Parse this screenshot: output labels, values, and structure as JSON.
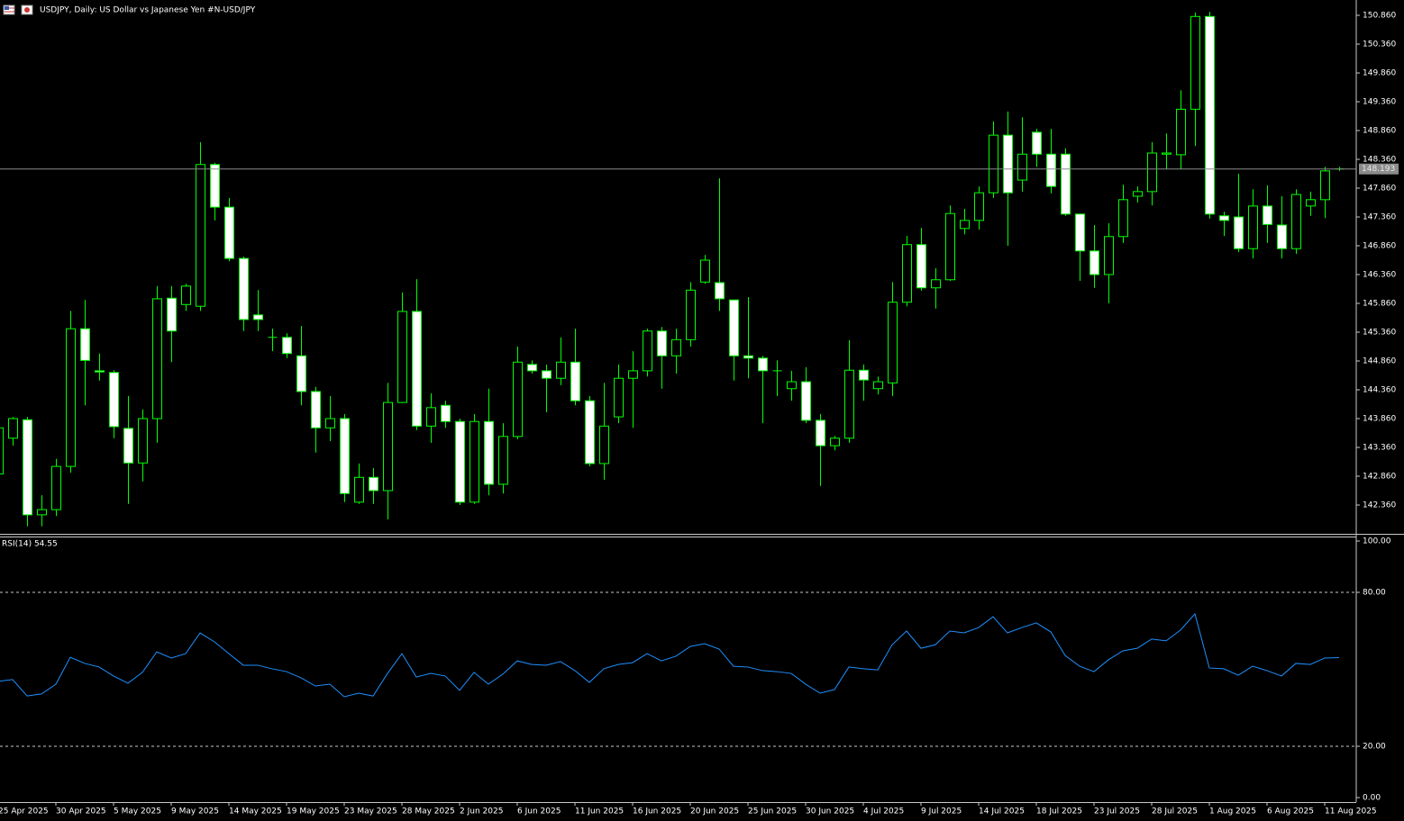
{
  "chart_data": [
    {
      "type": "candlestick",
      "title": "USDJPY, Daily:  US Dollar vs  Japanese Yen #N-USD/JPY",
      "categories": [
        "25 Apr 2025",
        null,
        null,
        null,
        "30 Apr 2025",
        null,
        null,
        null,
        "5 May 2025",
        null,
        null,
        null,
        "9 May 2025",
        null,
        null,
        null,
        "14 May 2025",
        null,
        null,
        null,
        "19 May 2025",
        null,
        null,
        null,
        "23 May 2025",
        null,
        null,
        null,
        "28 May 2025",
        null,
        null,
        null,
        "2 Jun 2025",
        null,
        null,
        null,
        "6 Jun 2025",
        null,
        null,
        null,
        "11 Jun 2025",
        null,
        null,
        null,
        "16 Jun 2025",
        null,
        null,
        null,
        "20 Jun 2025",
        null,
        null,
        null,
        "25 Jun 2025",
        null,
        null,
        null,
        "30 Jun 2025",
        null,
        null,
        null,
        "4 Jul 2025",
        null,
        null,
        null,
        "9 Jul 2025",
        null,
        null,
        null,
        "14 Jul 2025",
        null,
        null,
        null,
        "18 Jul 2025",
        null,
        null,
        null,
        "23 Jul 2025",
        null,
        null,
        null,
        "28 Jul 2025",
        null,
        null,
        null,
        "1 Aug 2025",
        null,
        null,
        null,
        "6 Aug 2025",
        null,
        null,
        null,
        "11 Aug 2025",
        null
      ],
      "open": [
        142.9,
        143.52,
        143.84,
        142.19,
        142.28,
        143.03,
        145.42,
        144.69,
        144.66,
        143.69,
        143.09,
        143.86,
        145.95,
        145.84,
        145.81,
        148.27,
        147.53,
        146.64,
        145.66,
        145.27,
        145.27,
        144.95,
        144.33,
        143.7,
        143.86,
        142.41,
        142.84,
        142.61,
        144.14,
        145.72,
        143.73,
        144.09,
        143.81,
        142.41,
        143.81,
        142.72,
        143.55,
        144.8,
        144.69,
        144.56,
        144.84,
        144.17,
        143.08,
        143.89,
        144.56,
        144.69,
        145.38,
        144.95,
        145.23,
        146.23,
        146.22,
        145.92,
        144.95,
        144.91,
        144.69,
        144.38,
        144.5,
        143.83,
        143.39,
        143.52,
        144.7,
        144.38,
        144.48,
        145.88,
        146.88,
        146.13,
        146.27,
        147.16,
        147.3,
        147.78,
        148.78,
        148.0,
        148.83,
        148.45,
        148.45,
        147.41,
        146.77,
        146.36,
        147.02,
        147.72,
        147.8,
        148.45,
        148.44,
        149.23,
        150.84,
        147.38,
        147.36,
        146.81,
        147.55,
        147.22,
        146.81,
        147.55,
        147.66,
        148.18
      ],
      "high": [
        143.9,
        143.89,
        143.89,
        142.53,
        143.16,
        145.73,
        145.92,
        144.99,
        144.7,
        144.25,
        144.02,
        146.16,
        146.16,
        146.2,
        148.66,
        148.3,
        147.69,
        146.67,
        146.09,
        145.42,
        145.34,
        145.47,
        144.41,
        144.25,
        143.94,
        143.08,
        143.0,
        144.48,
        146.05,
        146.28,
        144.3,
        144.17,
        143.86,
        143.94,
        144.38,
        143.78,
        145.11,
        144.87,
        144.8,
        145.27,
        145.42,
        144.25,
        144.48,
        144.8,
        145.03,
        145.42,
        145.45,
        145.42,
        146.23,
        146.7,
        148.03,
        145.92,
        145.97,
        144.95,
        144.87,
        144.69,
        144.75,
        143.94,
        143.56,
        145.22,
        144.8,
        144.59,
        146.23,
        147.03,
        147.17,
        146.47,
        147.56,
        147.5,
        147.89,
        149.02,
        149.19,
        149.09,
        148.89,
        148.89,
        148.55,
        147.42,
        147.22,
        147.25,
        147.92,
        147.89,
        148.66,
        148.81,
        149.56,
        150.91,
        150.92,
        147.45,
        148.11,
        147.84,
        147.91,
        147.72,
        147.84,
        147.8,
        148.23,
        148.23
      ],
      "low": [
        142.8,
        143.39,
        141.99,
        141.99,
        142.17,
        142.92,
        144.09,
        144.52,
        143.52,
        142.38,
        142.77,
        143.44,
        144.84,
        145.73,
        145.73,
        147.3,
        146.59,
        145.38,
        145.38,
        145.03,
        144.91,
        144.09,
        143.27,
        143.47,
        142.41,
        142.38,
        142.38,
        142.11,
        144.13,
        143.66,
        143.44,
        143.7,
        142.36,
        142.38,
        142.53,
        142.56,
        143.5,
        144.64,
        143.97,
        144.44,
        144.09,
        143.03,
        142.8,
        143.78,
        143.7,
        144.59,
        144.38,
        144.64,
        145.11,
        146.2,
        145.73,
        144.52,
        144.56,
        143.78,
        144.25,
        144.17,
        143.78,
        142.69,
        143.31,
        143.44,
        144.17,
        144.28,
        144.25,
        145.81,
        146.08,
        145.77,
        146.25,
        147.06,
        147.14,
        147.69,
        146.86,
        147.8,
        148.23,
        147.77,
        147.38,
        146.25,
        146.13,
        145.86,
        146.91,
        147.61,
        147.56,
        148.19,
        148.19,
        148.59,
        147.33,
        147.03,
        146.75,
        146.64,
        146.91,
        146.64,
        146.72,
        147.38,
        147.34,
        148.16
      ],
      "close": [
        143.7,
        143.86,
        142.19,
        142.28,
        143.03,
        145.42,
        144.87,
        144.67,
        143.72,
        143.09,
        143.86,
        145.94,
        145.38,
        146.16,
        148.27,
        147.53,
        146.64,
        145.58,
        145.58,
        145.27,
        144.99,
        144.33,
        143.7,
        143.86,
        142.56,
        142.84,
        142.61,
        144.14,
        145.72,
        143.73,
        144.05,
        143.81,
        142.41,
        143.81,
        142.72,
        143.55,
        144.84,
        144.69,
        144.56,
        144.84,
        144.17,
        143.08,
        143.73,
        144.56,
        144.69,
        145.38,
        144.95,
        145.23,
        146.09,
        146.61,
        145.94,
        144.95,
        144.91,
        144.69,
        144.69,
        144.5,
        143.83,
        143.39,
        143.52,
        144.7,
        144.53,
        144.5,
        145.88,
        146.88,
        146.13,
        146.27,
        147.42,
        147.3,
        147.78,
        148.78,
        147.78,
        148.45,
        148.45,
        147.89,
        147.41,
        146.77,
        146.36,
        147.02,
        147.66,
        147.8,
        148.47,
        148.47,
        149.23,
        150.84,
        147.41,
        147.3,
        146.81,
        147.55,
        147.23,
        146.81,
        147.75,
        147.66,
        148.16,
        148.193
      ],
      "up_color": "#000000",
      "down_color": "#ffffff",
      "wick_color": "#00ff00",
      "ylim": [
        141.86,
        151.126
      ],
      "yticks": [
        {
          "value": 150.86,
          "label": "150.860"
        },
        {
          "value": 150.36,
          "label": "150.360"
        },
        {
          "value": 149.86,
          "label": "149.860"
        },
        {
          "value": 149.36,
          "label": "149.360"
        },
        {
          "value": 148.86,
          "label": "148.860"
        },
        {
          "value": 148.36,
          "label": "148.360"
        },
        {
          "value": 147.86,
          "label": "147.860"
        },
        {
          "value": 147.36,
          "label": "147.360"
        },
        {
          "value": 146.86,
          "label": "146.860"
        },
        {
          "value": 146.36,
          "label": "146.360"
        },
        {
          "value": 145.86,
          "label": "145.860"
        },
        {
          "value": 145.36,
          "label": "145.360"
        },
        {
          "value": 144.86,
          "label": "144.860"
        },
        {
          "value": 144.36,
          "label": "144.360"
        },
        {
          "value": 143.86,
          "label": "143.860"
        },
        {
          "value": 143.36,
          "label": "143.360"
        },
        {
          "value": 142.86,
          "label": "142.860"
        },
        {
          "value": 142.36,
          "label": "142.360"
        }
      ],
      "last_price": 148.193
    },
    {
      "type": "line",
      "title": "RSI(14) 54.55",
      "values": [
        45.3,
        46.0,
        39.6,
        40.4,
        44.2,
        54.7,
        52.3,
        50.9,
        47.4,
        44.6,
        48.8,
        56.8,
        54.4,
        56.1,
        64.2,
        60.7,
        56.1,
        51.6,
        51.6,
        50.2,
        49.1,
        46.7,
        43.5,
        44.2,
        39.3,
        40.7,
        39.6,
        48.4,
        56.1,
        47.0,
        48.4,
        47.4,
        41.8,
        48.8,
        44.2,
        48.1,
        53.3,
        51.9,
        51.6,
        53.0,
        49.5,
        44.9,
        50.2,
        51.9,
        52.6,
        56.1,
        53.3,
        55.1,
        58.9,
        60.0,
        57.9,
        51.2,
        50.9,
        49.5,
        49.1,
        48.4,
        44.2,
        40.7,
        42.1,
        50.9,
        50.2,
        49.8,
        59.6,
        64.9,
        58.2,
        59.6,
        64.9,
        64.2,
        66.3,
        70.5,
        64.2,
        66.3,
        68.1,
        64.6,
        55.4,
        51.2,
        49.1,
        53.7,
        57.2,
        58.2,
        61.8,
        61.1,
        65.3,
        71.6,
        50.5,
        50.2,
        47.7,
        51.2,
        49.5,
        47.4,
        52.3,
        51.9,
        54.4,
        54.55
      ],
      "color": "#1e90ff",
      "ylim": [
        0,
        100
      ],
      "yticks": [
        {
          "value": 100,
          "label": "100.00"
        },
        {
          "value": 80,
          "label": "80.00"
        },
        {
          "value": 20,
          "label": "20.00"
        },
        {
          "value": 0,
          "label": "0.00"
        }
      ],
      "grid": "dashed"
    }
  ]
}
